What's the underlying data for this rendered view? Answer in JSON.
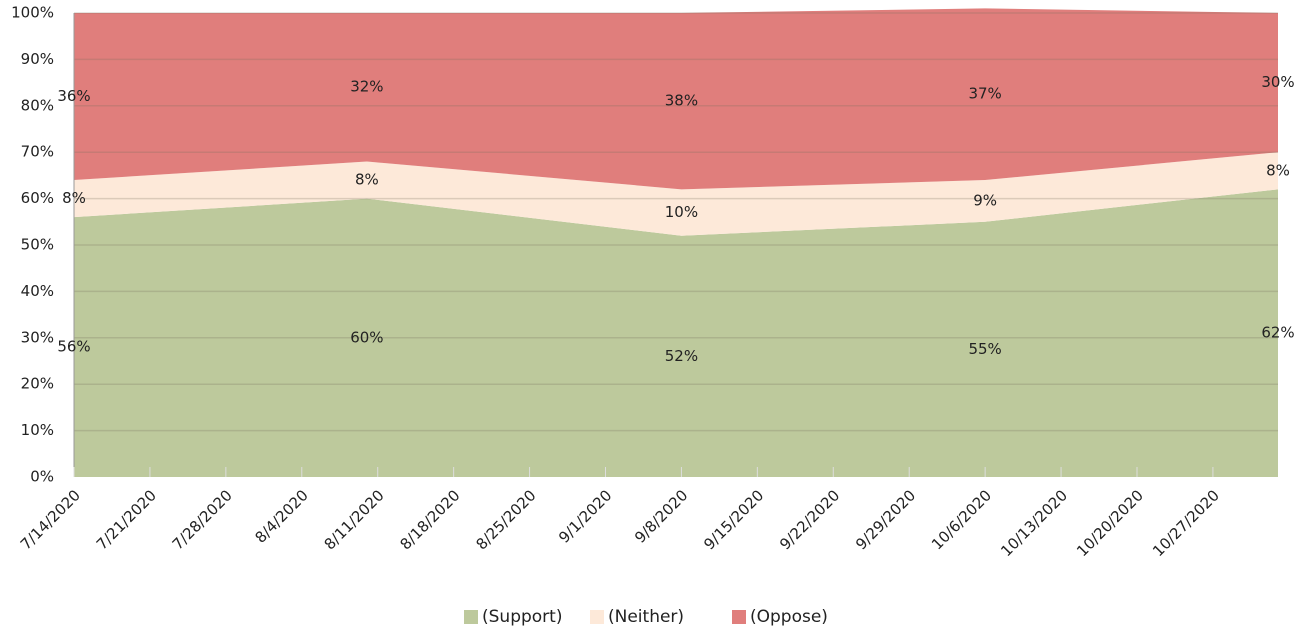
{
  "chart_data": {
    "type": "area",
    "stacked": true,
    "x": [
      "7/14/2020",
      "8/10/2020",
      "9/8/2020",
      "10/6/2020",
      "11/2/2020"
    ],
    "series": [
      {
        "name": "(Support)",
        "color": "#bdc99c",
        "values": [
          56,
          60,
          52,
          55,
          62
        ],
        "value_labels": [
          "56%",
          "60%",
          "52%",
          "55%",
          "62%"
        ]
      },
      {
        "name": "(Neither)",
        "color": "#fde9d9",
        "values": [
          8,
          8,
          10,
          9,
          8
        ],
        "value_labels": [
          "8%",
          "8%",
          "10%",
          "9%",
          "8%"
        ]
      },
      {
        "name": "(Oppose)",
        "color": "#e07e7c",
        "values": [
          36,
          32,
          38,
          37,
          30
        ],
        "value_labels": [
          "36%",
          "32%",
          "38%",
          "37%",
          "30%"
        ]
      }
    ],
    "xlim": [
      "7/14/2020",
      "11/2/2020"
    ],
    "xticks": [
      "7/14/2020",
      "7/21/2020",
      "7/28/2020",
      "8/4/2020",
      "8/11/2020",
      "8/18/2020",
      "8/25/2020",
      "9/1/2020",
      "9/8/2020",
      "9/15/2020",
      "9/22/2020",
      "9/29/2020",
      "10/6/2020",
      "10/13/2020",
      "10/20/2020",
      "10/27/2020"
    ],
    "ylim": [
      0,
      100
    ],
    "yticks": [
      {
        "value": 0,
        "label": "0%"
      },
      {
        "value": 10,
        "label": "10%"
      },
      {
        "value": 20,
        "label": "20%"
      },
      {
        "value": 30,
        "label": "30%"
      },
      {
        "value": 40,
        "label": "40%"
      },
      {
        "value": 50,
        "label": "50%"
      },
      {
        "value": 60,
        "label": "60%"
      },
      {
        "value": 70,
        "label": "70%"
      },
      {
        "value": 80,
        "label": "80%"
      },
      {
        "value": 90,
        "label": "90%"
      },
      {
        "value": 100,
        "label": "100%"
      }
    ],
    "grid": true,
    "legend": "bottom"
  }
}
